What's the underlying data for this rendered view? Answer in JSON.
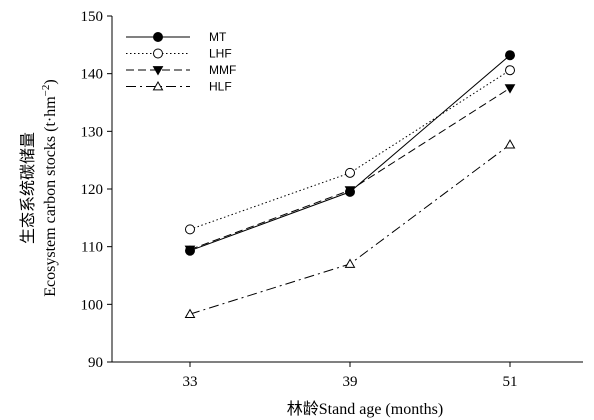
{
  "chart_data": {
    "type": "line",
    "x": [
      33,
      39,
      51
    ],
    "x_tick_labels": [
      "33",
      "39",
      "51"
    ],
    "y_ticks": [
      90,
      100,
      110,
      120,
      130,
      140,
      150
    ],
    "ylim": [
      90,
      150
    ],
    "xlabel": "林龄Stand age (months)",
    "ylabel_cn": "生态系统碳储量",
    "ylabel_en": "Ecosystem carbon stocks (t·hm",
    "ylabel_unit_sup": "−2",
    "ylabel_close": ")",
    "grid": false,
    "legend_position": "top-left",
    "series": [
      {
        "name": "MT",
        "values": [
          109.3,
          119.5,
          143.2
        ],
        "line_style": "solid",
        "marker": "filled-circle"
      },
      {
        "name": "LHF",
        "values": [
          113.0,
          122.8,
          140.6
        ],
        "line_style": "dotted",
        "marker": "open-circle"
      },
      {
        "name": "MMF",
        "values": [
          109.5,
          119.8,
          137.5
        ],
        "line_style": "dashed",
        "marker": "filled-triangle-down"
      },
      {
        "name": "HLF",
        "values": [
          98.3,
          107.0,
          127.7
        ],
        "line_style": "dash-dot",
        "marker": "open-triangle-up"
      }
    ]
  }
}
